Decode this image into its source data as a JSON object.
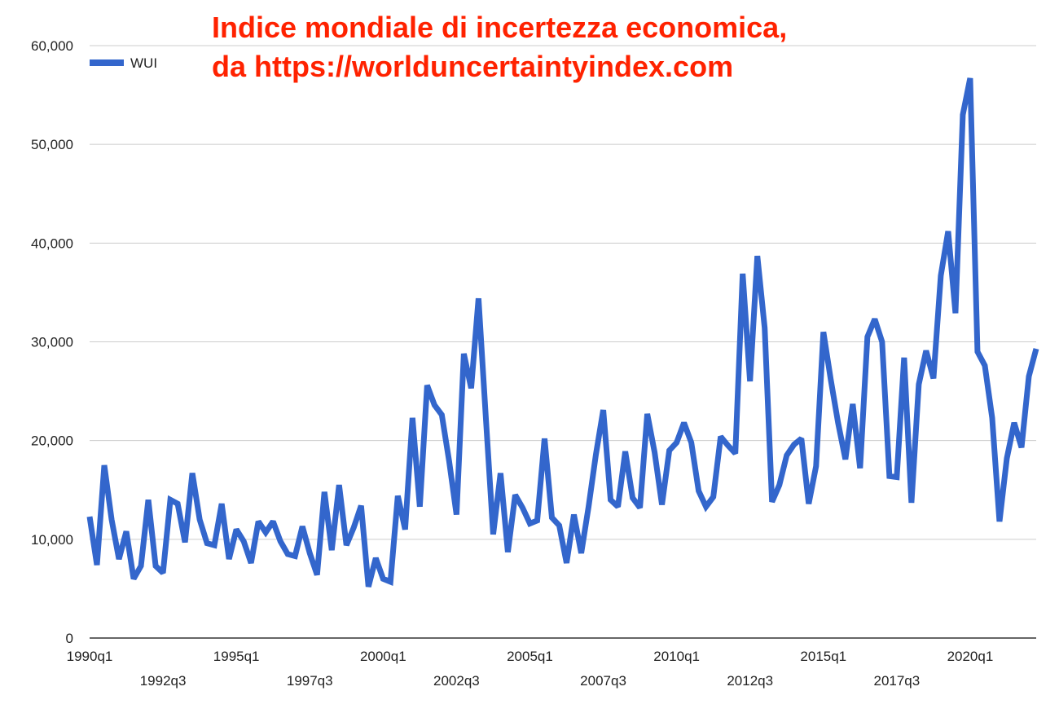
{
  "colors": {
    "series": "#3366cc",
    "title": "#ff2200",
    "grid": "#cccccc",
    "axis": "#333333"
  },
  "title": {
    "line1": "Indice mondiale di incertezza economica,",
    "line2": "da https://worlduncertaintyindex.com"
  },
  "chart_data": {
    "type": "line",
    "ylim": [
      0,
      60000
    ],
    "yticks": [
      0,
      10000,
      20000,
      30000,
      40000,
      50000,
      60000
    ],
    "ytick_labels": [
      "0",
      "10,000",
      "20,000",
      "30,000",
      "40,000",
      "50,000",
      "60,000"
    ],
    "grid": true,
    "legend_position": "top-left",
    "xticks": [
      {
        "label": "1990q1",
        "index": 0,
        "row": 0
      },
      {
        "label": "1992q3",
        "index": 10,
        "row": 1
      },
      {
        "label": "1995q1",
        "index": 20,
        "row": 0
      },
      {
        "label": "1997q3",
        "index": 30,
        "row": 1
      },
      {
        "label": "2000q1",
        "index": 40,
        "row": 0
      },
      {
        "label": "2002q3",
        "index": 50,
        "row": 1
      },
      {
        "label": "2005q1",
        "index": 60,
        "row": 0
      },
      {
        "label": "2007q3",
        "index": 70,
        "row": 1
      },
      {
        "label": "2010q1",
        "index": 80,
        "row": 0
      },
      {
        "label": "2012q3",
        "index": 90,
        "row": 1
      },
      {
        "label": "2015q1",
        "index": 100,
        "row": 0
      },
      {
        "label": "2017q3",
        "index": 110,
        "row": 1
      },
      {
        "label": "2020q1",
        "index": 120,
        "row": 0
      }
    ],
    "series": [
      {
        "name": "WUI",
        "values": [
          12300,
          7400,
          17500,
          12000,
          8000,
          10800,
          6000,
          7300,
          14000,
          7300,
          6600,
          14000,
          13600,
          9700,
          16700,
          12000,
          9600,
          9400,
          13600,
          8000,
          11000,
          9800,
          7600,
          11800,
          10700,
          11800,
          9800,
          8500,
          8300,
          11300,
          8600,
          6400,
          14800,
          8900,
          15500,
          9400,
          11200,
          13400,
          5200,
          8100,
          6000,
          5700,
          14400,
          11000,
          22300,
          13300,
          25600,
          23600,
          22600,
          17900,
          12500,
          28800,
          25300,
          34400,
          22300,
          10500,
          16700,
          8700,
          14500,
          13200,
          11600,
          11900,
          20200,
          12200,
          11400,
          7600,
          12500,
          8600,
          13300,
          18600,
          23100,
          14000,
          13300,
          18900,
          14200,
          13200,
          22700,
          18800,
          13500,
          19000,
          19800,
          21800,
          19800,
          14900,
          13300,
          14300,
          20400,
          19500,
          18700,
          36900,
          26000,
          38700,
          31400,
          13800,
          15500,
          18500,
          19600,
          20200,
          13600,
          17400,
          31000,
          26200,
          21800,
          18100,
          23700,
          17200,
          30500,
          32300,
          30000,
          16400,
          16300,
          28400,
          13700,
          25700,
          29100,
          26300,
          36700,
          41200,
          32900,
          53000,
          56700,
          29000,
          27600,
          22300,
          11800,
          18200,
          21800,
          19300,
          26500,
          29300
        ]
      }
    ]
  }
}
